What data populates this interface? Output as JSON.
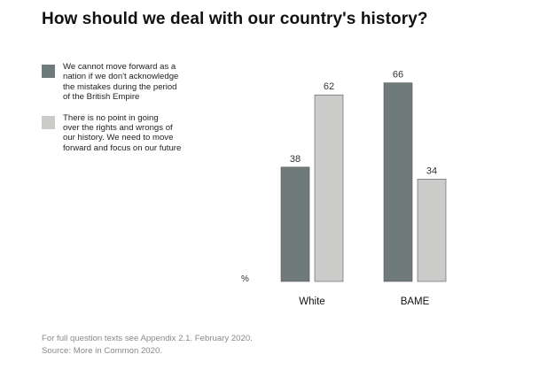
{
  "title": "How should we deal with our country's history?",
  "legend": [
    {
      "lines": [
        "We cannot move forward as a",
        "nation if we don't acknowledge",
        "the mistakes during the period",
        "of the British Empire"
      ],
      "color": "#6f7b7a"
    },
    {
      "lines": [
        "There is no point in going",
        "over the rights and wrongs of",
        "our history. We need to move",
        "forward and focus on our future"
      ],
      "color": "#cbcbc9"
    }
  ],
  "footer": {
    "line1": "For full question texts see Appendix 2.1. February 2020.",
    "line2": "Source: More in Common 2020."
  },
  "chart_data": {
    "type": "bar",
    "title": "How should we deal with our country's history?",
    "categories": [
      "White",
      "BAME"
    ],
    "series": [
      {
        "name": "We cannot move forward as a nation if we don't acknowledge the mistakes during the period of the British Empire",
        "values": [
          38,
          66
        ],
        "color": "#6f7b7a"
      },
      {
        "name": "There is no point in going over the rights and wrongs of our history. We need to move forward and focus on our future",
        "values": [
          62,
          34
        ],
        "color": "#cbcbc9"
      }
    ],
    "ylabel": "%",
    "xlabel": "",
    "ylim": [
      0,
      100
    ],
    "legend_position": "top-left",
    "grid": false
  }
}
